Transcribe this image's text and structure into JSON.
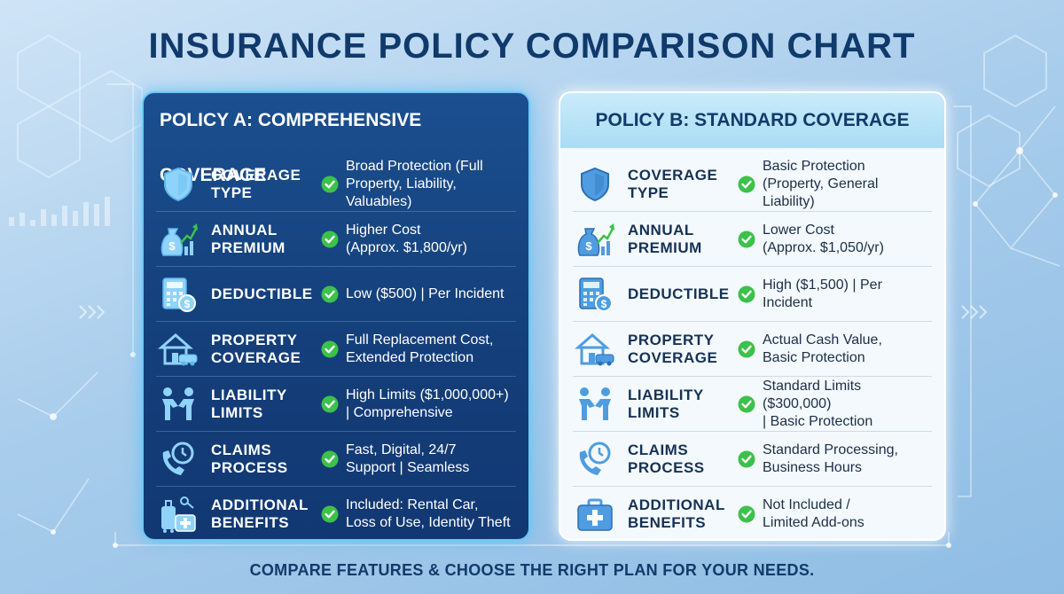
{
  "title": "INSURANCE POLICY COMPARISON CHART",
  "policies": [
    {
      "header": "POLICY A: COMPREHENSIVE COVERAGE",
      "rows": [
        {
          "label": "COVERAGE\nTYPE",
          "desc": "Broad Protection (Full\nProperty, Liability, Valuables)",
          "icon": "shield-icon"
        },
        {
          "label": "ANNUAL\nPREMIUM",
          "desc": "Higher Cost\n(Approx. $1,800/yr)",
          "icon": "money-bag-icon"
        },
        {
          "label": "DEDUCTIBLE",
          "desc": "Low ($500) | Per Incident",
          "icon": "calculator-icon"
        },
        {
          "label": "PROPERTY\nCOVERAGE",
          "desc": "Full Replacement Cost,\nExtended Protection",
          "icon": "house-car-icon"
        },
        {
          "label": "LIABILITY\nLIMITS",
          "desc": "High Limits ($1,000,000+)\n| Comprehensive",
          "icon": "handshake-icon"
        },
        {
          "label": "CLAIMS\nPROCESS",
          "desc": "Fast, Digital, 24/7\nSupport | Seamless",
          "icon": "phone-clock-icon"
        },
        {
          "label": "ADDITIONAL\nBENEFITS",
          "desc": "Included: Rental Car,\nLoss of Use, Identity Theft",
          "icon": "luggage-medkit-icon"
        }
      ]
    },
    {
      "header": "POLICY B: STANDARD COVERAGE",
      "rows": [
        {
          "label": "COVERAGE\nTYPE",
          "desc": "Basic Protection\n(Property, General Liability)",
          "icon": "shield-icon"
        },
        {
          "label": "ANNUAL\nPREMIUM",
          "desc": "Lower Cost\n(Approx. $1,050/yr)",
          "icon": "money-bag-icon"
        },
        {
          "label": "DEDUCTIBLE",
          "desc": "High ($1,500) | Per Incident",
          "icon": "calculator-icon"
        },
        {
          "label": "PROPERTY\nCOVERAGE",
          "desc": "Actual Cash Value,\nBasic Protection",
          "icon": "house-car-icon"
        },
        {
          "label": "LIABILITY\nLIMITS",
          "desc": "Standard Limits ($300,000)\n| Basic Protection",
          "icon": "handshake-icon"
        },
        {
          "label": "CLAIMS\nPROCESS",
          "desc": "Standard Processing,\nBusiness Hours",
          "icon": "phone-clock-icon"
        },
        {
          "label": "ADDITIONAL\nBENEFITS",
          "desc": "Not Included /\nLimited Add-ons",
          "icon": "medkit-icon"
        }
      ]
    }
  ],
  "footer": "COMPARE FEATURES & CHOOSE THE RIGHT PLAN FOR YOUR NEEDS.",
  "colors": {
    "title": "#103a6b",
    "card_a_bg": "#143f7a",
    "card_b_bg": "#f4f9fd",
    "check": "#3cc14a",
    "icon_blue": "#4f9de0"
  }
}
